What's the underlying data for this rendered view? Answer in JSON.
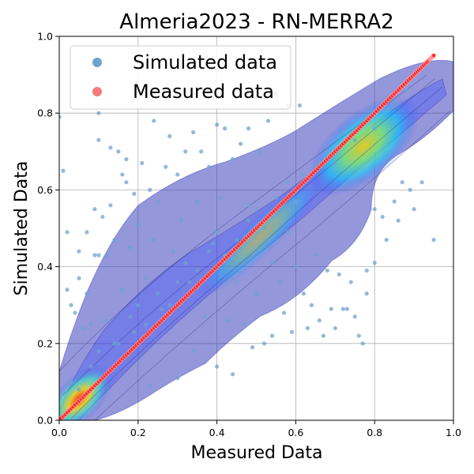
{
  "chart_data": {
    "type": "scatter",
    "title": "Almeria2023 - RN-MERRA2",
    "xlabel": "Measured Data",
    "ylabel": "Simulated Data",
    "xlim": [
      0,
      1
    ],
    "ylim": [
      0,
      1
    ],
    "xticks": [
      "0.0",
      "0.2",
      "0.4",
      "0.6",
      "0.8",
      "1.0"
    ],
    "yticks": [
      "0.0",
      "0.2",
      "0.4",
      "0.6",
      "0.8",
      "1.0"
    ],
    "grid": true,
    "legend_position": "top-left",
    "density_overlay": "kde-jet",
    "series": [
      {
        "name": "Simulated data",
        "color": "#6fa3cf",
        "points": [
          [
            0.0,
            0.79
          ],
          [
            0.01,
            0.65
          ],
          [
            0.02,
            0.49
          ],
          [
            0.02,
            0.34
          ],
          [
            0.03,
            0.3
          ],
          [
            0.04,
            0.28
          ],
          [
            0.05,
            0.44
          ],
          [
            0.05,
            0.37
          ],
          [
            0.06,
            0.24
          ],
          [
            0.07,
            0.49
          ],
          [
            0.07,
            0.33
          ],
          [
            0.08,
            0.25
          ],
          [
            0.09,
            0.55
          ],
          [
            0.09,
            0.43
          ],
          [
            0.1,
            0.8
          ],
          [
            0.1,
            0.73
          ],
          [
            0.1,
            0.43
          ],
          [
            0.11,
            0.53
          ],
          [
            0.12,
            0.43
          ],
          [
            0.12,
            0.12
          ],
          [
            0.13,
            0.71
          ],
          [
            0.13,
            0.56
          ],
          [
            0.14,
            0.47
          ],
          [
            0.14,
            0.2
          ],
          [
            0.15,
            0.7
          ],
          [
            0.16,
            0.64
          ],
          [
            0.16,
            0.34
          ],
          [
            0.17,
            0.68
          ],
          [
            0.17,
            0.62
          ],
          [
            0.18,
            0.45
          ],
          [
            0.19,
            0.59
          ],
          [
            0.19,
            0.23
          ],
          [
            0.2,
            0.51
          ],
          [
            0.21,
            0.67
          ],
          [
            0.22,
            0.37
          ],
          [
            0.23,
            0.6
          ],
          [
            0.23,
            0.09
          ],
          [
            0.24,
            0.78
          ],
          [
            0.24,
            0.47
          ],
          [
            0.25,
            0.57
          ],
          [
            0.26,
            0.29
          ],
          [
            0.27,
            0.66
          ],
          [
            0.28,
            0.74
          ],
          [
            0.29,
            0.44
          ],
          [
            0.3,
            0.64
          ],
          [
            0.3,
            0.11
          ],
          [
            0.31,
            0.52
          ],
          [
            0.32,
            0.7
          ],
          [
            0.33,
            0.36
          ],
          [
            0.34,
            0.75
          ],
          [
            0.34,
            0.18
          ],
          [
            0.35,
            0.57
          ],
          [
            0.36,
            0.7
          ],
          [
            0.37,
            0.27
          ],
          [
            0.38,
            0.66
          ],
          [
            0.39,
            0.46
          ],
          [
            0.4,
            0.14
          ],
          [
            0.4,
            0.77
          ],
          [
            0.41,
            0.58
          ],
          [
            0.42,
            0.76
          ],
          [
            0.43,
            0.26
          ],
          [
            0.44,
            0.68
          ],
          [
            0.44,
            0.12
          ],
          [
            0.45,
            0.36
          ],
          [
            0.46,
            0.72
          ],
          [
            0.47,
            0.25
          ],
          [
            0.48,
            0.76
          ],
          [
            0.48,
            0.56
          ],
          [
            0.49,
            0.19
          ],
          [
            0.5,
            0.84
          ],
          [
            0.5,
            0.33
          ],
          [
            0.51,
            0.7
          ],
          [
            0.52,
            0.2
          ],
          [
            0.53,
            0.78
          ],
          [
            0.54,
            0.41
          ],
          [
            0.54,
            0.22
          ],
          [
            0.55,
            0.85
          ],
          [
            0.56,
            0.36
          ],
          [
            0.57,
            0.28
          ],
          [
            0.58,
            0.49
          ],
          [
            0.58,
            0.82
          ],
          [
            0.59,
            0.23
          ],
          [
            0.6,
            0.4
          ],
          [
            0.61,
            0.82
          ],
          [
            0.62,
            0.33
          ],
          [
            0.63,
            0.24
          ],
          [
            0.64,
            0.3
          ],
          [
            0.65,
            0.43
          ],
          [
            0.66,
            0.26
          ],
          [
            0.67,
            0.22
          ],
          [
            0.68,
            0.39
          ],
          [
            0.69,
            0.29
          ],
          [
            0.7,
            0.24
          ],
          [
            0.71,
            0.38
          ],
          [
            0.72,
            0.29
          ],
          [
            0.73,
            0.29
          ],
          [
            0.74,
            0.36
          ],
          [
            0.75,
            0.27
          ],
          [
            0.76,
            0.22
          ],
          [
            0.77,
            0.2
          ],
          [
            0.78,
            0.33
          ],
          [
            0.78,
            0.39
          ],
          [
            0.8,
            0.55
          ],
          [
            0.8,
            0.41
          ],
          [
            0.82,
            0.53
          ],
          [
            0.83,
            0.47
          ],
          [
            0.85,
            0.57
          ],
          [
            0.86,
            0.52
          ],
          [
            0.87,
            0.62
          ],
          [
            0.89,
            0.6
          ],
          [
            0.9,
            0.55
          ],
          [
            0.92,
            0.62
          ],
          [
            0.95,
            0.47
          ],
          [
            0.03,
            0.1
          ],
          [
            0.05,
            0.08
          ],
          [
            0.08,
            0.14
          ],
          [
            0.1,
            0.18
          ],
          [
            0.12,
            0.26
          ],
          [
            0.15,
            0.2
          ],
          [
            0.18,
            0.27
          ],
          [
            0.2,
            0.3
          ],
          [
            0.22,
            0.25
          ],
          [
            0.25,
            0.33
          ],
          [
            0.28,
            0.3
          ],
          [
            0.3,
            0.36
          ],
          [
            0.32,
            0.41
          ],
          [
            0.35,
            0.39
          ],
          [
            0.38,
            0.44
          ],
          [
            0.4,
            0.49
          ],
          [
            0.42,
            0.43
          ],
          [
            0.45,
            0.47
          ],
          [
            0.48,
            0.52
          ],
          [
            0.5,
            0.55
          ],
          [
            0.52,
            0.5
          ],
          [
            0.55,
            0.58
          ],
          [
            0.58,
            0.62
          ],
          [
            0.6,
            0.57
          ],
          [
            0.62,
            0.64
          ],
          [
            0.65,
            0.66
          ],
          [
            0.68,
            0.7
          ],
          [
            0.7,
            0.67
          ],
          [
            0.72,
            0.75
          ],
          [
            0.75,
            0.73
          ],
          [
            0.78,
            0.79
          ],
          [
            0.8,
            0.76
          ],
          [
            0.82,
            0.82
          ],
          [
            0.85,
            0.83
          ],
          [
            0.88,
            0.86
          ]
        ]
      },
      {
        "name": "Measured data",
        "color": "#f47c7c",
        "points": [
          [
            0.0,
            0.0
          ],
          [
            0.05,
            0.05
          ],
          [
            0.1,
            0.1
          ],
          [
            0.15,
            0.15
          ],
          [
            0.2,
            0.2
          ],
          [
            0.25,
            0.25
          ],
          [
            0.3,
            0.3
          ],
          [
            0.35,
            0.35
          ],
          [
            0.4,
            0.4
          ],
          [
            0.45,
            0.45
          ],
          [
            0.5,
            0.5
          ],
          [
            0.55,
            0.55
          ],
          [
            0.6,
            0.6
          ],
          [
            0.65,
            0.65
          ],
          [
            0.7,
            0.7
          ],
          [
            0.75,
            0.75
          ],
          [
            0.8,
            0.8
          ],
          [
            0.85,
            0.85
          ],
          [
            0.9,
            0.9
          ],
          [
            0.94,
            0.94
          ],
          [
            0.95,
            0.95
          ]
        ]
      }
    ]
  }
}
